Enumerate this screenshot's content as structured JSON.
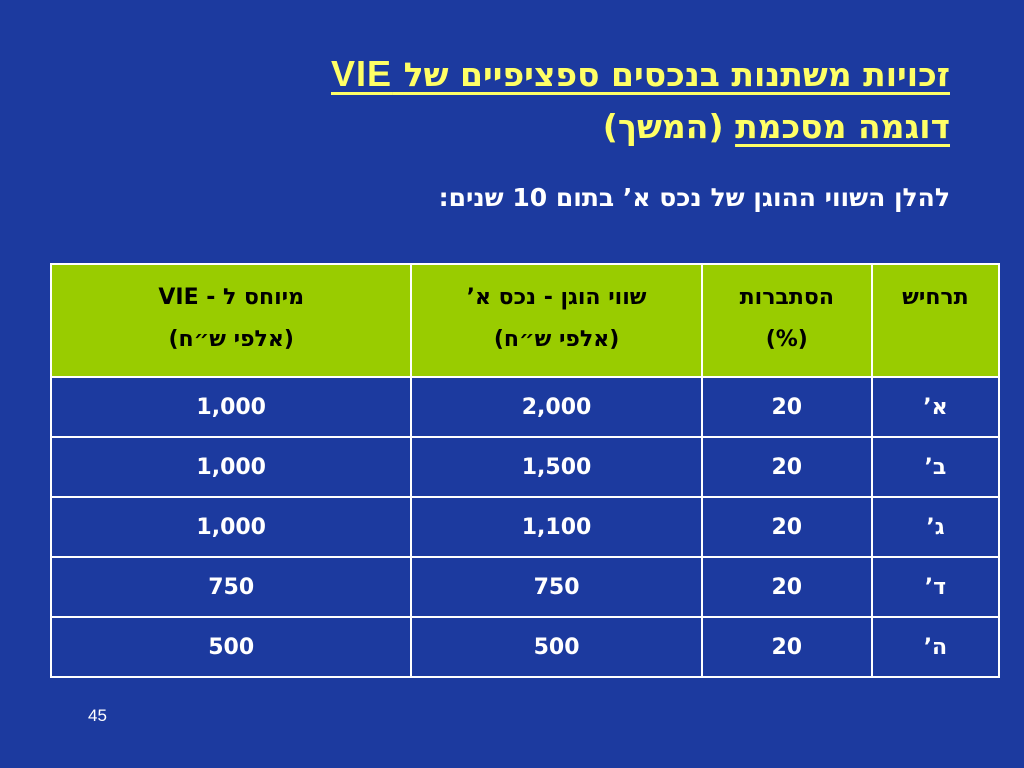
{
  "title": {
    "line1_text": "זכויות משתנות בנכסים ספציפיים של",
    "line1_vie": "VIE",
    "line2_text": "דוגמה מסכמת",
    "line2_suffix": "(המשך)"
  },
  "subtitle": "להלן השווי ההוגן של נכס א’ בתום 10 שנים:",
  "table": {
    "headers": [
      {
        "line1": "תרחיש",
        "line2": ""
      },
      {
        "line1": "הסתברות",
        "line2": "(%)"
      },
      {
        "line1": "שווי הוגן - נכס א’",
        "line2": "(אלפי ש״ח)"
      },
      {
        "line1": "מיוחס ל - VIE",
        "line2": "(אלפי ש״ח)"
      }
    ],
    "rows": [
      [
        "א’",
        "20",
        "2,000",
        "1,000"
      ],
      [
        "ב’",
        "20",
        "1,500",
        "1,000"
      ],
      [
        "ג’",
        "20",
        "1,100",
        "1,000"
      ],
      [
        "ד’",
        "20",
        "750",
        "750"
      ],
      [
        "ה’",
        "20",
        "500",
        "500"
      ]
    ]
  },
  "page_number": "45",
  "colors": {
    "background": "#1c3a9f",
    "title": "#ffff66",
    "header_fill": "#99cc00",
    "text": "#ffffff"
  }
}
